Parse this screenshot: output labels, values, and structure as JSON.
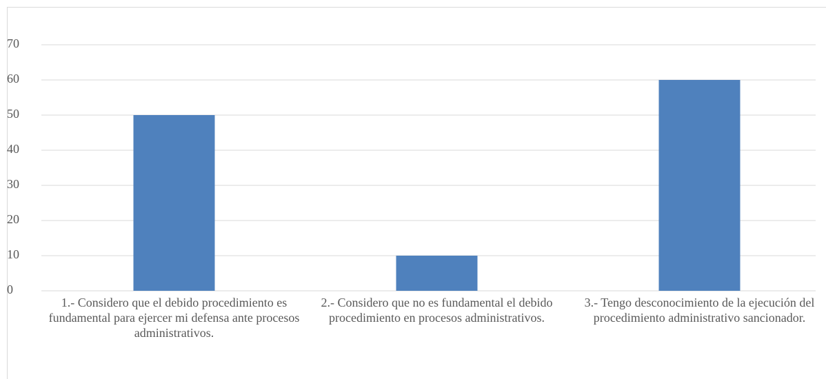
{
  "chart_data": {
    "type": "bar",
    "categories": [
      "1.- Considero que el debido procedimiento es fundamental para ejercer mi defensa ante procesos administrativos.",
      "2.- Considero que no es fundamental el debido procedimiento en procesos administrativos.",
      "3.- Tengo desconocimiento de la ejecución del procedimiento administrativo sancionador."
    ],
    "values": [
      50,
      10,
      60
    ],
    "color": "#4f81bd",
    "ylim": [
      0,
      70
    ],
    "yticks": [
      0,
      10,
      20,
      30,
      40,
      50,
      60,
      70
    ],
    "grid": true
  }
}
